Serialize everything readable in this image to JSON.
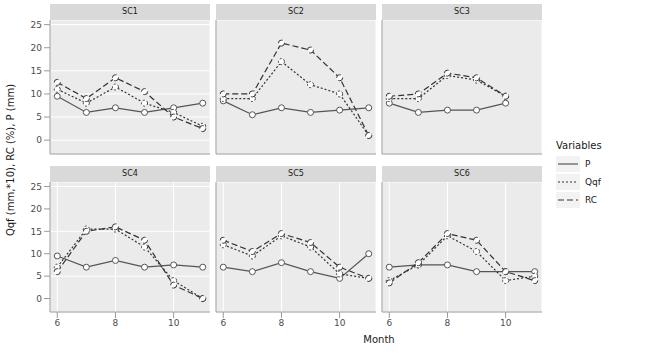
{
  "y_label": "Qqf (mm,*10), RC (%), P (mm)",
  "x_label": "Month",
  "legend_title": "Variables",
  "chart_data": [
    {
      "type": "line",
      "title": "SC1",
      "x": [
        6,
        7,
        8,
        9,
        10,
        11
      ],
      "xlim": [
        5.75,
        11.25
      ],
      "xticks": [
        6,
        8,
        10
      ],
      "ylim": [
        -3,
        26
      ],
      "yticks": [
        0,
        5,
        10,
        15,
        20,
        25
      ],
      "grid": true,
      "series": [
        {
          "name": "P",
          "color": "#555555",
          "line_style": "solid",
          "marker": "circle",
          "values": [
            9.5,
            6,
            7,
            6,
            7,
            8
          ]
        },
        {
          "name": "Qqf",
          "color": "#333333",
          "line_style": "dotted",
          "marker": "circle",
          "values": [
            11,
            8,
            11.5,
            8,
            6,
            3
          ]
        },
        {
          "name": "RC",
          "color": "#333333",
          "line_style": "dashed",
          "marker": "circle",
          "values": [
            12.5,
            9,
            13.5,
            10.5,
            5,
            2.5
          ]
        }
      ]
    },
    {
      "type": "line",
      "title": "SC2",
      "x": [
        6,
        7,
        8,
        9,
        10,
        11
      ],
      "xlim": [
        5.75,
        11.25
      ],
      "xticks": [
        6,
        8,
        10
      ],
      "ylim": [
        -3,
        26
      ],
      "yticks": [
        0,
        5,
        10,
        15,
        20,
        25
      ],
      "grid": true,
      "series": [
        {
          "name": "P",
          "color": "#555555",
          "line_style": "solid",
          "marker": "circle",
          "values": [
            8.5,
            5.5,
            7,
            6,
            6.5,
            7
          ]
        },
        {
          "name": "Qqf",
          "color": "#333333",
          "line_style": "dotted",
          "marker": "circle",
          "values": [
            9,
            9,
            17,
            12,
            10,
            1
          ]
        },
        {
          "name": "RC",
          "color": "#333333",
          "line_style": "dashed",
          "marker": "circle",
          "values": [
            10,
            10,
            21,
            19.5,
            13.5,
            1
          ]
        }
      ]
    },
    {
      "type": "line",
      "title": "SC3",
      "x": [
        6,
        7,
        8,
        9,
        10,
        11
      ],
      "xlim": [
        5.75,
        11.25
      ],
      "xticks": [
        6,
        8,
        10
      ],
      "ylim": [
        -3,
        26
      ],
      "yticks": [
        0,
        5,
        10,
        15,
        20,
        25
      ],
      "grid": true,
      "series": [
        {
          "name": "P",
          "color": "#555555",
          "line_style": "solid",
          "marker": "circle",
          "values": [
            8,
            6,
            6.5,
            6.5,
            8,
            null
          ]
        },
        {
          "name": "Qqf",
          "color": "#333333",
          "line_style": "dotted",
          "marker": "circle",
          "values": [
            9,
            9,
            14,
            13,
            9.5,
            null
          ]
        },
        {
          "name": "RC",
          "color": "#333333",
          "line_style": "dashed",
          "marker": "circle",
          "values": [
            9.5,
            10,
            14.5,
            13.5,
            9.5,
            null
          ]
        }
      ]
    },
    {
      "type": "line",
      "title": "SC4",
      "x": [
        6,
        7,
        8,
        9,
        10,
        11
      ],
      "xlim": [
        5.75,
        11.25
      ],
      "xticks": [
        6,
        8,
        10
      ],
      "ylim": [
        -3,
        26
      ],
      "yticks": [
        0,
        5,
        10,
        15,
        20,
        25
      ],
      "grid": true,
      "series": [
        {
          "name": "P",
          "color": "#555555",
          "line_style": "solid",
          "marker": "circle",
          "values": [
            9.5,
            7,
            8.5,
            7,
            7.5,
            7
          ]
        },
        {
          "name": "Qqf",
          "color": "#333333",
          "line_style": "dotted",
          "marker": "circle",
          "values": [
            7,
            15.5,
            15.5,
            11.5,
            4,
            0
          ]
        },
        {
          "name": "RC",
          "color": "#333333",
          "line_style": "dashed",
          "marker": "circle",
          "values": [
            6,
            15,
            16,
            13,
            3,
            0
          ]
        }
      ]
    },
    {
      "type": "line",
      "title": "SC5",
      "x": [
        6,
        7,
        8,
        9,
        10,
        11
      ],
      "xlim": [
        5.75,
        11.25
      ],
      "xticks": [
        6,
        8,
        10
      ],
      "ylim": [
        -3,
        26
      ],
      "yticks": [
        0,
        5,
        10,
        15,
        20,
        25
      ],
      "grid": true,
      "series": [
        {
          "name": "P",
          "color": "#555555",
          "line_style": "solid",
          "marker": "circle",
          "values": [
            7,
            6,
            8,
            6,
            4.5,
            10
          ]
        },
        {
          "name": "Qqf",
          "color": "#333333",
          "line_style": "dotted",
          "marker": "circle",
          "values": [
            12,
            9.5,
            14,
            11.5,
            5.5,
            4.5
          ]
        },
        {
          "name": "RC",
          "color": "#333333",
          "line_style": "dashed",
          "marker": "circle",
          "values": [
            13,
            10.5,
            14.5,
            12.5,
            7,
            4.5
          ]
        }
      ]
    },
    {
      "type": "line",
      "title": "SC6",
      "x": [
        6,
        7,
        8,
        9,
        10,
        11
      ],
      "xlim": [
        5.75,
        11.25
      ],
      "xticks": [
        6,
        8,
        10
      ],
      "ylim": [
        -3,
        26
      ],
      "yticks": [
        0,
        5,
        10,
        15,
        20,
        25
      ],
      "grid": true,
      "series": [
        {
          "name": "P",
          "color": "#555555",
          "line_style": "solid",
          "marker": "circle",
          "values": [
            7,
            7.5,
            7.5,
            6,
            6,
            6
          ]
        },
        {
          "name": "Qqf",
          "color": "#333333",
          "line_style": "dotted",
          "marker": "circle",
          "values": [
            4,
            7.5,
            14,
            10.5,
            4,
            5
          ]
        },
        {
          "name": "RC",
          "color": "#333333",
          "line_style": "dashed",
          "marker": "circle",
          "values": [
            3.5,
            8,
            14.5,
            13,
            6,
            4
          ]
        }
      ]
    }
  ]
}
